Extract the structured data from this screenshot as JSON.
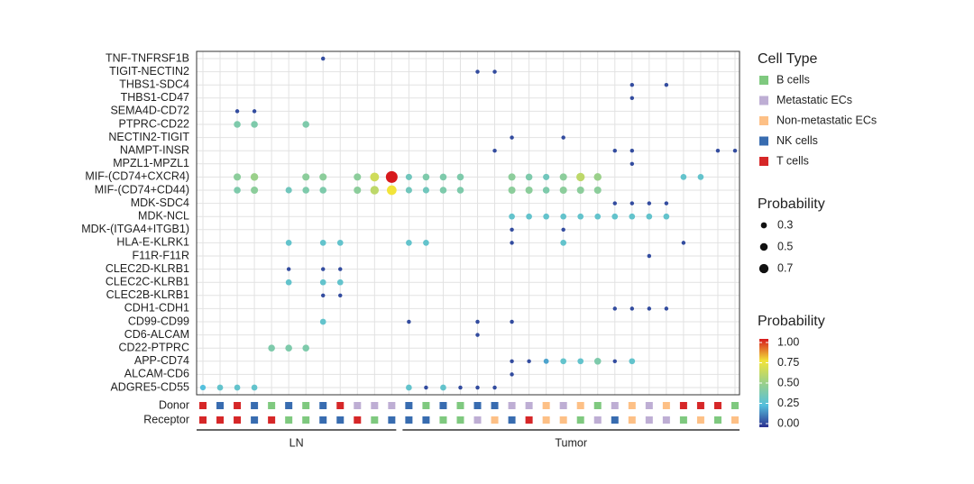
{
  "chart_data": {
    "type": "dotplot",
    "rows": [
      "TNF-TNFRSF1B",
      "TIGIT-NECTIN2",
      "THBS1-SDC4",
      "THBS1-CD47",
      "SEMA4D-CD72",
      "PTPRC-CD22",
      "NECTIN2-TIGIT",
      "NAMPT-INSR",
      "MPZL1-MPZL1",
      "MIF-(CD74+CXCR4)",
      "MIF-(CD74+CD44)",
      "MDK-SDC4",
      "MDK-NCL",
      "MDK-(ITGA4+ITGB1)",
      "HLA-E-KLRK1",
      "F11R-F11R",
      "CLEC2D-KLRB1",
      "CLEC2C-KLRB1",
      "CLEC2B-KLRB1",
      "CDH1-CDH1",
      "CD99-CD99",
      "CD6-ALCAM",
      "CD22-PTPRC",
      "APP-CD74",
      "ALCAM-CD6",
      "ADGRE5-CD55"
    ],
    "donor_label": "Donor",
    "receptor_label": "Receptor",
    "donor": [
      "T cells",
      "NK cells",
      "T cells",
      "NK cells",
      "B cells",
      "NK cells",
      "B cells",
      "NK cells",
      "T cells",
      "Metastatic ECs",
      "Metastatic ECs",
      "Metastatic ECs",
      "NK cells",
      "B cells",
      "NK cells",
      "B cells",
      "NK cells",
      "NK cells",
      "Metastatic ECs",
      "Metastatic ECs",
      "Non-metastatic ECs",
      "Metastatic ECs",
      "Non-metastatic ECs",
      "B cells",
      "Metastatic ECs",
      "Non-metastatic ECs",
      "Metastatic ECs",
      "Non-metastatic ECs",
      "T cells",
      "T cells",
      "T cells",
      "B cells"
    ],
    "receptor": [
      "T cells",
      "T cells",
      "T cells",
      "NK cells",
      "T cells",
      "B cells",
      "B cells",
      "NK cells",
      "NK cells",
      "T cells",
      "B cells",
      "NK cells",
      "NK cells",
      "NK cells",
      "B cells",
      "B cells",
      "Metastatic ECs",
      "Non-metastatic ECs",
      "NK cells",
      "T cells",
      "Non-metastatic ECs",
      "Non-metastatic ECs",
      "B cells",
      "Metastatic ECs",
      "NK cells",
      "Non-metastatic ECs",
      "Metastatic ECs",
      "Metastatic ECs",
      "B cells",
      "Non-metastatic ECs",
      "B cells",
      "Non-metastatic ECs"
    ],
    "groups": [
      {
        "name": "LN",
        "from": 0,
        "to": 11
      },
      {
        "name": "Tumor",
        "from": 12,
        "to": 31
      }
    ],
    "points": [
      [
        0,
        7,
        0.05
      ],
      [
        1,
        16,
        0.05
      ],
      [
        1,
        17,
        0.05
      ],
      [
        2,
        25,
        0.05
      ],
      [
        2,
        27,
        0.05
      ],
      [
        3,
        25,
        0.05
      ],
      [
        4,
        2,
        0.05
      ],
      [
        4,
        3,
        0.05
      ],
      [
        5,
        2,
        0.4
      ],
      [
        5,
        3,
        0.4
      ],
      [
        5,
        6,
        0.4
      ],
      [
        6,
        18,
        0.05
      ],
      [
        6,
        21,
        0.05
      ],
      [
        7,
        17,
        0.05
      ],
      [
        7,
        24,
        0.05
      ],
      [
        7,
        25,
        0.05
      ],
      [
        7,
        30,
        0.05
      ],
      [
        7,
        31,
        0.05
      ],
      [
        8,
        25,
        0.05
      ],
      [
        9,
        2,
        0.45
      ],
      [
        9,
        3,
        0.5
      ],
      [
        9,
        6,
        0.45
      ],
      [
        9,
        7,
        0.45
      ],
      [
        9,
        9,
        0.45
      ],
      [
        9,
        10,
        0.65
      ],
      [
        9,
        11,
        1.0
      ],
      [
        9,
        12,
        0.35
      ],
      [
        9,
        13,
        0.4
      ],
      [
        9,
        14,
        0.4
      ],
      [
        9,
        15,
        0.4
      ],
      [
        9,
        18,
        0.45
      ],
      [
        9,
        19,
        0.4
      ],
      [
        9,
        20,
        0.35
      ],
      [
        9,
        21,
        0.45
      ],
      [
        9,
        22,
        0.6
      ],
      [
        9,
        23,
        0.5
      ],
      [
        9,
        28,
        0.3
      ],
      [
        9,
        29,
        0.3
      ],
      [
        10,
        2,
        0.4
      ],
      [
        10,
        3,
        0.45
      ],
      [
        10,
        5,
        0.35
      ],
      [
        10,
        6,
        0.4
      ],
      [
        10,
        7,
        0.4
      ],
      [
        10,
        9,
        0.45
      ],
      [
        10,
        10,
        0.6
      ],
      [
        10,
        11,
        0.75
      ],
      [
        10,
        12,
        0.35
      ],
      [
        10,
        13,
        0.35
      ],
      [
        10,
        14,
        0.4
      ],
      [
        10,
        15,
        0.4
      ],
      [
        10,
        18,
        0.45
      ],
      [
        10,
        19,
        0.45
      ],
      [
        10,
        20,
        0.4
      ],
      [
        10,
        21,
        0.45
      ],
      [
        10,
        22,
        0.45
      ],
      [
        10,
        23,
        0.45
      ],
      [
        11,
        24,
        0.05
      ],
      [
        11,
        25,
        0.05
      ],
      [
        11,
        26,
        0.05
      ],
      [
        11,
        27,
        0.05
      ],
      [
        12,
        18,
        0.3
      ],
      [
        12,
        19,
        0.3
      ],
      [
        12,
        20,
        0.3
      ],
      [
        12,
        21,
        0.3
      ],
      [
        12,
        22,
        0.3
      ],
      [
        12,
        23,
        0.3
      ],
      [
        12,
        24,
        0.3
      ],
      [
        12,
        25,
        0.3
      ],
      [
        12,
        26,
        0.3
      ],
      [
        12,
        27,
        0.3
      ],
      [
        13,
        18,
        0.05
      ],
      [
        13,
        21,
        0.05
      ],
      [
        14,
        5,
        0.3
      ],
      [
        14,
        7,
        0.3
      ],
      [
        14,
        8,
        0.3
      ],
      [
        14,
        12,
        0.3
      ],
      [
        14,
        13,
        0.3
      ],
      [
        14,
        18,
        0.05
      ],
      [
        14,
        21,
        0.3
      ],
      [
        14,
        28,
        0.05
      ],
      [
        15,
        26,
        0.05
      ],
      [
        16,
        5,
        0.05
      ],
      [
        16,
        7,
        0.05
      ],
      [
        16,
        8,
        0.05
      ],
      [
        17,
        5,
        0.3
      ],
      [
        17,
        7,
        0.3
      ],
      [
        17,
        8,
        0.3
      ],
      [
        18,
        7,
        0.05
      ],
      [
        18,
        8,
        0.05
      ],
      [
        19,
        24,
        0.05
      ],
      [
        19,
        25,
        0.05
      ],
      [
        19,
        26,
        0.05
      ],
      [
        19,
        27,
        0.05
      ],
      [
        20,
        7,
        0.3
      ],
      [
        20,
        12,
        0.05
      ],
      [
        20,
        16,
        0.05
      ],
      [
        20,
        18,
        0.05
      ],
      [
        21,
        16,
        0.05
      ],
      [
        22,
        4,
        0.4
      ],
      [
        22,
        5,
        0.4
      ],
      [
        22,
        6,
        0.4
      ],
      [
        23,
        18,
        0.05
      ],
      [
        23,
        19,
        0.05
      ],
      [
        23,
        20,
        0.2
      ],
      [
        23,
        21,
        0.3
      ],
      [
        23,
        22,
        0.3
      ],
      [
        23,
        23,
        0.4
      ],
      [
        23,
        24,
        0.05
      ],
      [
        23,
        25,
        0.3
      ],
      [
        24,
        18,
        0.05
      ],
      [
        25,
        0,
        0.25
      ],
      [
        25,
        1,
        0.3
      ],
      [
        25,
        2,
        0.3
      ],
      [
        25,
        3,
        0.3
      ],
      [
        25,
        12,
        0.3
      ],
      [
        25,
        13,
        0.05
      ],
      [
        25,
        14,
        0.3
      ],
      [
        25,
        15,
        0.05
      ],
      [
        25,
        16,
        0.05
      ],
      [
        25,
        17,
        0.05
      ]
    ],
    "legend_title": "Cell Type",
    "cell_types": [
      {
        "name": "B cells",
        "color": "#7fc97f"
      },
      {
        "name": "Metastatic ECs",
        "color": "#beaed4"
      },
      {
        "name": "Non-metastatic ECs",
        "color": "#fdc086"
      },
      {
        "name": "NK cells",
        "color": "#386cb0"
      },
      {
        "name": "T cells",
        "color": "#d62728"
      }
    ],
    "size_title": "Probability",
    "size_values": [
      0.3,
      0.5,
      0.7
    ],
    "color_title": "Probability",
    "colorlim": [
      0,
      1
    ],
    "colorticks": [
      {
        "value": 1,
        "label": "1.00"
      },
      {
        "value": 0.75,
        "label": "0.75"
      },
      {
        "value": 0.5,
        "label": "0.50"
      },
      {
        "value": 0.25,
        "label": "0.25"
      },
      {
        "value": 0,
        "label": "0.00"
      }
    ],
    "colormap": [
      "#2b2f8f",
      "#55c0dd",
      "#9ad08a",
      "#f2e43a",
      "#d7191c"
    ],
    "grid": true
  }
}
